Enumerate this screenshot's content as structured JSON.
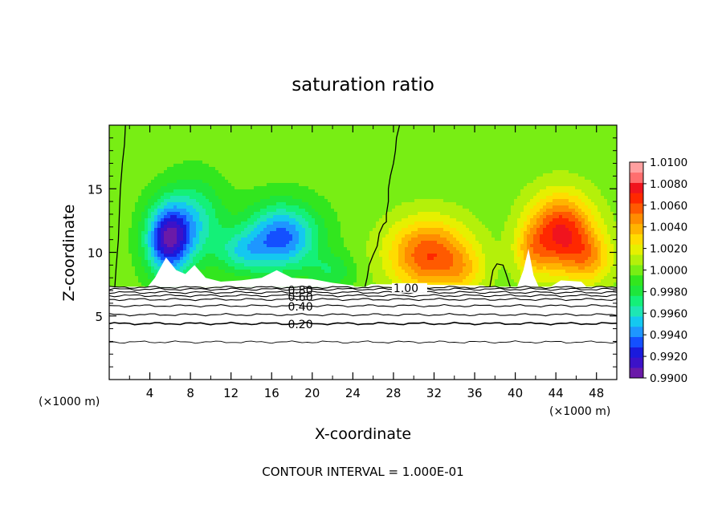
{
  "chart_data": {
    "type": "heatmap",
    "title": "saturation ratio",
    "xlabel": "X-coordinate",
    "ylabel": "Z-coordinate",
    "x_unit_left": "(×1000 m)",
    "x_unit_right": "(×1000 m)",
    "footer": "CONTOUR INTERVAL = 1.000E-01",
    "xlim": [
      0,
      50
    ],
    "ylim": [
      0,
      20
    ],
    "x_ticks": [
      4,
      8,
      12,
      16,
      20,
      24,
      28,
      32,
      36,
      40,
      44,
      48
    ],
    "x_tick_labels": [
      "4",
      "8",
      "12",
      "16",
      "20",
      "24",
      "28",
      "32",
      "36",
      "40",
      "44",
      "48"
    ],
    "y_ticks": [
      5,
      10,
      15
    ],
    "y_tick_labels": [
      "5",
      "10",
      "15"
    ],
    "colorbar": {
      "min": 0.99,
      "max": 1.01,
      "tick_values": [
        0.99,
        0.992,
        0.994,
        0.996,
        0.998,
        1.0,
        1.002,
        1.004,
        1.006,
        1.008,
        1.01
      ],
      "tick_labels": [
        "0.9900",
        "0.9920",
        "0.9940",
        "0.9960",
        "0.9980",
        "1.0000",
        "1.0020",
        "1.0040",
        "1.0060",
        "1.0080",
        "1.0100"
      ],
      "colors": [
        "#6a1aa8",
        "#3c12c8",
        "#1a1adc",
        "#1450ff",
        "#1e96ff",
        "#14c8f0",
        "#1ee6b4",
        "#14f078",
        "#1ee63c",
        "#32e61e",
        "#78ee14",
        "#b4f00a",
        "#e6f000",
        "#ffdc00",
        "#ffb400",
        "#ff8c00",
        "#ff5a00",
        "#ff2800",
        "#f0141e",
        "#ff6e6e",
        "#ffa0a0"
      ]
    },
    "contour_levels": [
      {
        "value": 0.2,
        "label": "0.20",
        "z": 4.4
      },
      {
        "value": 0.3,
        "label": "",
        "z": 5.1
      },
      {
        "value": 0.4,
        "label": "0.40",
        "z": 5.8
      },
      {
        "value": 0.5,
        "label": "",
        "z": 6.3
      },
      {
        "value": 0.6,
        "label": "0.60",
        "z": 6.6
      },
      {
        "value": 0.7,
        "label": "",
        "z": 6.85
      },
      {
        "value": 0.8,
        "label": "0.80",
        "z": 7.1
      },
      {
        "value": 1.0,
        "label": "1.00",
        "z": 7.25
      }
    ],
    "lowest_contour_z": 2.95,
    "cloud_base_z": 7.3,
    "fields": [
      {
        "x": 5.8,
        "z": 11.0,
        "sx": 2.2,
        "sz": 2.8,
        "amp": -0.0085
      },
      {
        "x": 8.5,
        "z": 12.5,
        "sx": 2.8,
        "sz": 3.2,
        "amp": -0.0035
      },
      {
        "x": 17.0,
        "z": 11.2,
        "sx": 3.6,
        "sz": 2.6,
        "amp": -0.0065
      },
      {
        "x": 13.0,
        "z": 10.0,
        "sx": 2.5,
        "sz": 1.7,
        "amp": -0.003
      },
      {
        "x": 22.0,
        "z": 8.5,
        "sx": 2.2,
        "sz": 1.4,
        "amp": -0.002
      },
      {
        "x": 31.5,
        "z": 9.8,
        "sx": 4.0,
        "sz": 2.8,
        "amp": 0.0062
      },
      {
        "x": 35.0,
        "z": 8.5,
        "sx": 2.2,
        "sz": 1.8,
        "amp": 0.0018
      },
      {
        "x": 44.5,
        "z": 11.5,
        "sx": 3.2,
        "sz": 3.0,
        "amp": 0.0075
      },
      {
        "x": 41.5,
        "z": 10.0,
        "sx": 1.6,
        "sz": 2.0,
        "amp": 0.0025
      },
      {
        "x": 47.5,
        "z": 9.5,
        "sx": 2.2,
        "sz": 2.0,
        "amp": 0.003
      }
    ],
    "background_value": 0.99995
  }
}
